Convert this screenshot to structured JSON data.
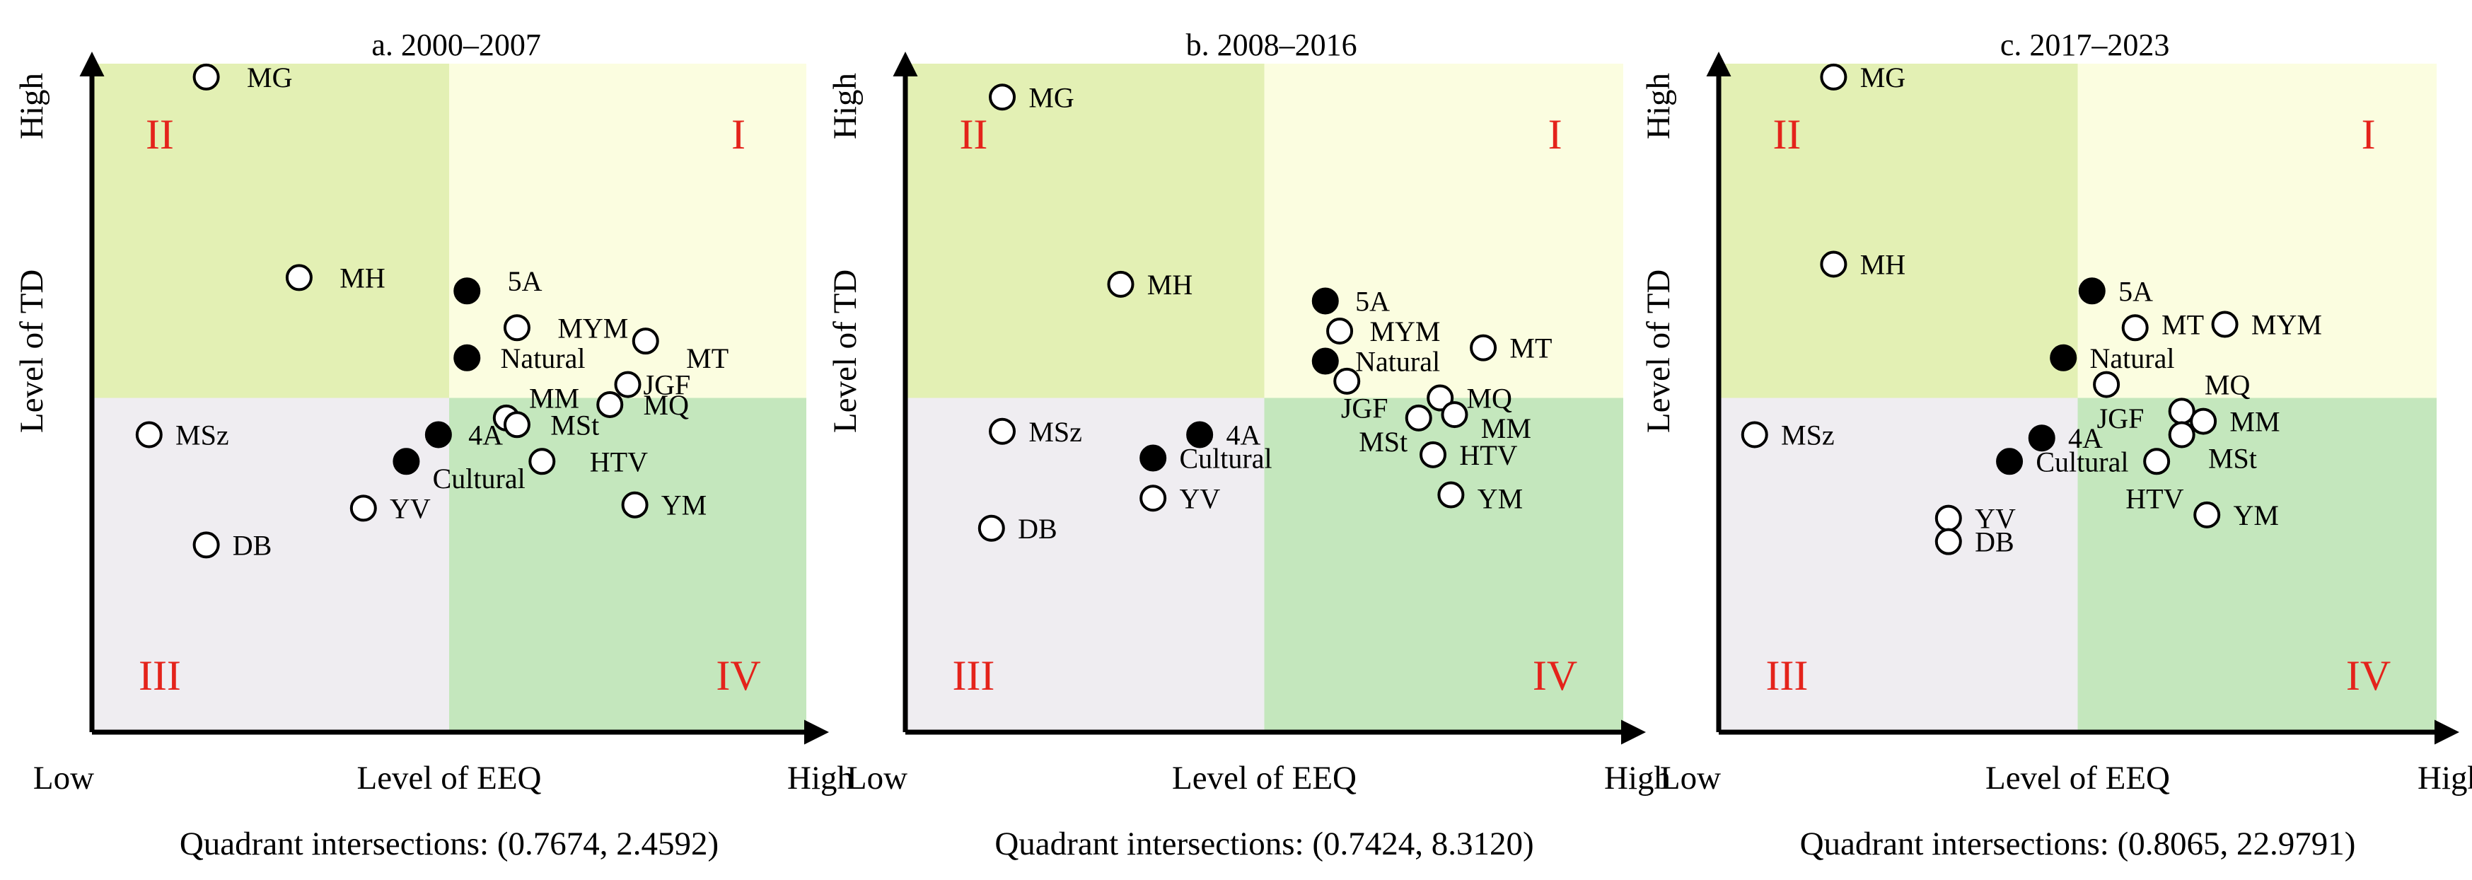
{
  "figure": {
    "colors": {
      "quadrant_I": "#fbfde0",
      "quadrant_II": "#e3f0b4",
      "quadrant_III": "#efedf1",
      "quadrant_IV": "#c4e7bd",
      "quadrant_label": "#e4231b",
      "axis": "#000000",
      "marker_filled": "#000000",
      "marker_open": "#ffffff"
    },
    "quadrant_labels": {
      "I": "I",
      "II": "II",
      "III": "III",
      "IV": "IV"
    }
  },
  "chart_data": [
    {
      "type": "scatter",
      "title": "a. 2000–2007",
      "xlabel": "Level of EEQ",
      "ylabel": "Level of TD",
      "x_low": "Low",
      "x_high": "High",
      "y_high": "High",
      "xlim": [
        0,
        100
      ],
      "ylim": [
        0,
        100
      ],
      "quadrant_split": [
        50,
        50
      ],
      "caption": "Quadrant intersections: (0.7674, 2.4592)",
      "points": [
        {
          "label": "MG",
          "x": 16,
          "y": 98,
          "filled": false,
          "lx": 4,
          "ly": 0
        },
        {
          "label": "MH",
          "x": 29,
          "y": 68,
          "filled": false,
          "lx": 4,
          "ly": 0
        },
        {
          "label": "5A",
          "x": 52.5,
          "y": 66,
          "filled": true,
          "lx": 4,
          "ly": 1.5
        },
        {
          "label": "MYM",
          "x": 59.5,
          "y": 60.5,
          "filled": false,
          "lx": 4,
          "ly": 0
        },
        {
          "label": "MT",
          "x": 77.5,
          "y": 58.5,
          "filled": false,
          "lx": 4,
          "ly": -2.5
        },
        {
          "label": "Natural",
          "x": 52.5,
          "y": 56,
          "filled": true,
          "lx": 3,
          "ly": 0
        },
        {
          "label": "JGF",
          "x": 75,
          "y": 52,
          "filled": false,
          "lx": 0.5,
          "ly": 0
        },
        {
          "label": "MQ",
          "x": 72.5,
          "y": 49,
          "filled": false,
          "lx": 3,
          "ly": 0
        },
        {
          "label": "MM",
          "x": 58,
          "y": 47,
          "filled": false,
          "lx": 1.5,
          "ly": 3
        },
        {
          "label": "MSt",
          "x": 59.5,
          "y": 46,
          "filled": false,
          "lx": 3,
          "ly": 0
        },
        {
          "label": "4A",
          "x": 48.5,
          "y": 44.5,
          "filled": true,
          "lx": 2.5,
          "ly": 0
        },
        {
          "label": "MSz",
          "x": 8,
          "y": 44.5,
          "filled": false,
          "lx": 2,
          "ly": 0
        },
        {
          "label": "Cultural",
          "x": 44,
          "y": 40.5,
          "filled": true,
          "lx": 2,
          "ly": -2.5
        },
        {
          "label": "HTV",
          "x": 63,
          "y": 40.5,
          "filled": false,
          "lx": 5,
          "ly": 0
        },
        {
          "label": "YV",
          "x": 38,
          "y": 33.5,
          "filled": false,
          "lx": 2,
          "ly": 0
        },
        {
          "label": "YM",
          "x": 76,
          "y": 34,
          "filled": false,
          "lx": 2,
          "ly": 0
        },
        {
          "label": "DB",
          "x": 16,
          "y": 28,
          "filled": false,
          "lx": 2,
          "ly": 0
        }
      ]
    },
    {
      "type": "scatter",
      "title": "b. 2008–2016",
      "xlabel": "Level of EEQ",
      "ylabel": "Level of TD",
      "x_low": "Low",
      "x_high": "High",
      "y_high": "High",
      "xlim": [
        0,
        100
      ],
      "ylim": [
        0,
        100
      ],
      "quadrant_split": [
        50,
        50
      ],
      "caption": "Quadrant intersections: (0.7424, 8.3120)",
      "points": [
        {
          "label": "MG",
          "x": 13.5,
          "y": 95,
          "filled": false,
          "lx": 2,
          "ly": 0
        },
        {
          "label": "MH",
          "x": 30,
          "y": 67,
          "filled": false,
          "lx": 2,
          "ly": 0
        },
        {
          "label": "5A",
          "x": 58.5,
          "y": 64.5,
          "filled": true,
          "lx": 2.5,
          "ly": 0
        },
        {
          "label": "MYM",
          "x": 60.5,
          "y": 60,
          "filled": false,
          "lx": 2.5,
          "ly": 0
        },
        {
          "label": "MT",
          "x": 80.5,
          "y": 57.5,
          "filled": false,
          "lx": 2,
          "ly": 0
        },
        {
          "label": "Natural",
          "x": 58.5,
          "y": 55.5,
          "filled": true,
          "lx": 2.5,
          "ly": 0
        },
        {
          "label": "JGF",
          "x": 61.5,
          "y": 52.5,
          "filled": false,
          "lx": -2.5,
          "ly": -4
        },
        {
          "label": "MQ",
          "x": 74.5,
          "y": 50,
          "filled": false,
          "lx": 2,
          "ly": 0
        },
        {
          "label": "MM",
          "x": 76.5,
          "y": 47.5,
          "filled": false,
          "lx": 2,
          "ly": -2
        },
        {
          "label": "MSt",
          "x": 71.5,
          "y": 47,
          "filled": false,
          "lx": -10,
          "ly": -3.5
        },
        {
          "label": "4A",
          "x": 41,
          "y": 44.5,
          "filled": true,
          "lx": 2,
          "ly": 0
        },
        {
          "label": "MSz",
          "x": 13.5,
          "y": 45,
          "filled": false,
          "lx": 2,
          "ly": 0
        },
        {
          "label": "Cultural",
          "x": 34.5,
          "y": 41,
          "filled": true,
          "lx": 2,
          "ly": 0
        },
        {
          "label": "HTV",
          "x": 73.5,
          "y": 41.5,
          "filled": false,
          "lx": 2,
          "ly": 0
        },
        {
          "label": "YV",
          "x": 34.5,
          "y": 35,
          "filled": false,
          "lx": 2,
          "ly": 0
        },
        {
          "label": "YM",
          "x": 76,
          "y": 35.5,
          "filled": false,
          "lx": 2,
          "ly": -0.5
        },
        {
          "label": "DB",
          "x": 12,
          "y": 30.5,
          "filled": false,
          "lx": 2,
          "ly": 0
        }
      ]
    },
    {
      "type": "scatter",
      "title": "c. 2017–2023",
      "xlabel": "Level of EEQ",
      "ylabel": "Level of TD",
      "x_low": "Low",
      "x_high": "High",
      "y_high": "High",
      "xlim": [
        0,
        100
      ],
      "ylim": [
        0,
        100
      ],
      "quadrant_split": [
        50,
        50
      ],
      "caption": "Quadrant intersections: (0.8065, 22.9791)",
      "points": [
        {
          "label": "MG",
          "x": 16,
          "y": 98,
          "filled": false,
          "lx": 2,
          "ly": 0
        },
        {
          "label": "MH",
          "x": 16,
          "y": 70,
          "filled": false,
          "lx": 2,
          "ly": 0
        },
        {
          "label": "5A",
          "x": 52,
          "y": 66,
          "filled": true,
          "lx": 2,
          "ly": 0
        },
        {
          "label": "MT",
          "x": 58,
          "y": 60.5,
          "filled": false,
          "lx": 2,
          "ly": 0.5
        },
        {
          "label": "MYM",
          "x": 70.5,
          "y": 61,
          "filled": false,
          "lx": 2,
          "ly": 0
        },
        {
          "label": "Natural",
          "x": 48,
          "y": 56,
          "filled": true,
          "lx": 2,
          "ly": 0
        },
        {
          "label": "JGF",
          "x": 54,
          "y": 52,
          "filled": false,
          "lx": -3,
          "ly": -5
        },
        {
          "label": "MQ",
          "x": 64.5,
          "y": 48,
          "filled": false,
          "lx": 1.5,
          "ly": 4
        },
        {
          "label": "MM",
          "x": 67.5,
          "y": 46.5,
          "filled": false,
          "lx": 2,
          "ly": 0
        },
        {
          "label": "MSt",
          "x": 64.5,
          "y": 44.5,
          "filled": false,
          "lx": 2,
          "ly": -3.5
        },
        {
          "label": "4A",
          "x": 45,
          "y": 44,
          "filled": true,
          "lx": 2,
          "ly": 0
        },
        {
          "label": "MSz",
          "x": 5,
          "y": 44.5,
          "filled": false,
          "lx": 2,
          "ly": 0
        },
        {
          "label": "Cultural",
          "x": 40.5,
          "y": 40.5,
          "filled": true,
          "lx": 2,
          "ly": 0
        },
        {
          "label": "HTV",
          "x": 61,
          "y": 40.5,
          "filled": false,
          "lx": -6,
          "ly": -5.5
        },
        {
          "label": "YV",
          "x": 32,
          "y": 32,
          "filled": false,
          "lx": 2,
          "ly": 0
        },
        {
          "label": "YM",
          "x": 68,
          "y": 32.5,
          "filled": false,
          "lx": 2,
          "ly": 0
        },
        {
          "label": "DB",
          "x": 32,
          "y": 28.5,
          "filled": false,
          "lx": 2,
          "ly": 0
        }
      ]
    }
  ]
}
